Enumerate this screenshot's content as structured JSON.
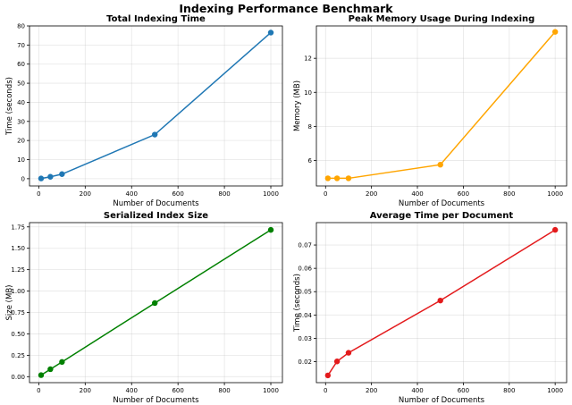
{
  "figure": {
    "title": "Indexing Performance Benchmark"
  },
  "chart_data": [
    {
      "type": "line",
      "title": "Total Indexing Time",
      "xlabel": "Number of Documents",
      "ylabel": "Time (seconds)",
      "x": [
        10,
        50,
        100,
        500,
        1000
      ],
      "values": [
        0.14,
        1.0,
        2.4,
        23.1,
        76.5
      ],
      "color": "#1f77b4",
      "xlim": [
        -40,
        1050
      ],
      "ylim": [
        -3.8,
        80
      ],
      "xticks": [
        0,
        200,
        400,
        600,
        800,
        1000
      ],
      "yticks": [
        0,
        10,
        20,
        30,
        40,
        50,
        60,
        70,
        80
      ],
      "yticklabels": [
        "0",
        "10",
        "20",
        "30",
        "40",
        "50",
        "60",
        "70",
        "80"
      ],
      "grid": true
    },
    {
      "type": "line",
      "title": "Peak Memory Usage During Indexing",
      "xlabel": "Number of Documents",
      "ylabel": "Memory (MB)",
      "x": [
        10,
        50,
        100,
        500,
        1000
      ],
      "values": [
        4.95,
        4.95,
        4.95,
        5.75,
        13.55
      ],
      "color": "#ffa500",
      "xlim": [
        -40,
        1050
      ],
      "ylim": [
        4.5,
        13.9
      ],
      "xticks": [
        0,
        200,
        400,
        600,
        800,
        1000
      ],
      "yticks": [
        6,
        8,
        10,
        12
      ],
      "yticklabels": [
        "6",
        "8",
        "10",
        "12"
      ],
      "grid": true
    },
    {
      "type": "line",
      "title": "Serialized Index Size",
      "xlabel": "Number of Documents",
      "ylabel": "Size (MB)",
      "x": [
        10,
        50,
        100,
        500,
        1000
      ],
      "values": [
        0.018,
        0.087,
        0.172,
        0.86,
        1.715
      ],
      "color": "#008000",
      "xlim": [
        -40,
        1050
      ],
      "ylim": [
        -0.07,
        1.8
      ],
      "xticks": [
        0,
        200,
        400,
        600,
        800,
        1000
      ],
      "yticks": [
        0,
        0.25,
        0.5,
        0.75,
        1.0,
        1.25,
        1.5,
        1.75
      ],
      "yticklabels": [
        "0.00",
        "0.25",
        "0.50",
        "0.75",
        "1.00",
        "1.25",
        "1.50",
        "1.75"
      ],
      "grid": true
    },
    {
      "type": "line",
      "title": "Average Time per Document",
      "xlabel": "Number of Documents",
      "ylabel": "Time (seconds)",
      "x": [
        10,
        50,
        100,
        500,
        1000
      ],
      "values": [
        0.0141,
        0.0201,
        0.0238,
        0.0462,
        0.0765
      ],
      "color": "#e31a1c",
      "xlim": [
        -40,
        1050
      ],
      "ylim": [
        0.011,
        0.0796
      ],
      "xticks": [
        0,
        200,
        400,
        600,
        800,
        1000
      ],
      "yticks": [
        0.02,
        0.03,
        0.04,
        0.05,
        0.06,
        0.07
      ],
      "yticklabels": [
        "0.02",
        "0.03",
        "0.04",
        "0.05",
        "0.06",
        "0.07"
      ],
      "grid": true
    }
  ]
}
